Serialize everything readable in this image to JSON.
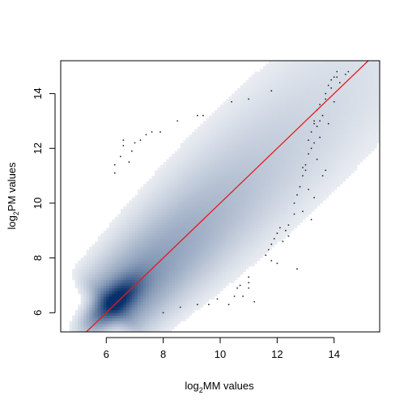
{
  "chart_data": {
    "type": "scatter",
    "title": "",
    "xlabel": {
      "prefix": "log",
      "sub": "2",
      "suffix": "MM values"
    },
    "ylabel": {
      "prefix": "log",
      "sub": "2",
      "suffix": "PM values"
    },
    "xlim": [
      4.4,
      15.6
    ],
    "ylim": [
      5.3,
      15.2
    ],
    "x_ticks": [
      6,
      8,
      10,
      12,
      14
    ],
    "y_ticks": [
      6,
      8,
      10,
      12,
      14
    ],
    "grid": false,
    "legend": "none",
    "density": {
      "description_colors": [
        "#ffffff",
        "#08306b"
      ],
      "color_low": "#ffffff",
      "color_high": "#08306b"
    },
    "reference_line": {
      "intercept": 0,
      "slope": 1,
      "color": "#e41a1c"
    },
    "outlier_points": [
      [
        6.3,
        11.1
      ],
      [
        6.3,
        11.4
      ],
      [
        6.5,
        11.7
      ],
      [
        6.6,
        12.1
      ],
      [
        6.6,
        12.3
      ],
      [
        6.8,
        11.5
      ],
      [
        6.9,
        11.9
      ],
      [
        7.0,
        12.2
      ],
      [
        7.2,
        12.3
      ],
      [
        7.4,
        12.5
      ],
      [
        7.6,
        12.6
      ],
      [
        7.9,
        12.6
      ],
      [
        8.5,
        13.0
      ],
      [
        9.2,
        13.2
      ],
      [
        9.4,
        13.2
      ],
      [
        10.4,
        13.7
      ],
      [
        11.0,
        13.8
      ],
      [
        11.8,
        14.1
      ],
      [
        8.0,
        6.0
      ],
      [
        8.6,
        6.2
      ],
      [
        9.2,
        6.3
      ],
      [
        9.6,
        6.3
      ],
      [
        9.9,
        6.5
      ],
      [
        10.3,
        6.3
      ],
      [
        10.5,
        6.6
      ],
      [
        10.6,
        6.9
      ],
      [
        10.7,
        7.0
      ],
      [
        10.8,
        6.6
      ],
      [
        11.0,
        6.9
      ],
      [
        11.0,
        7.1
      ],
      [
        11.0,
        7.3
      ],
      [
        11.2,
        6.4
      ],
      [
        11.6,
        8.1
      ],
      [
        11.7,
        8.3
      ],
      [
        11.8,
        7.9
      ],
      [
        11.8,
        8.5
      ],
      [
        11.9,
        8.7
      ],
      [
        12.0,
        7.8
      ],
      [
        12.0,
        8.9
      ],
      [
        12.1,
        9.1
      ],
      [
        12.2,
        8.6
      ],
      [
        12.3,
        9.0
      ],
      [
        12.4,
        9.2
      ],
      [
        12.4,
        8.8
      ],
      [
        12.6,
        9.6
      ],
      [
        12.6,
        10.0
      ],
      [
        12.7,
        10.3
      ],
      [
        12.7,
        7.6
      ],
      [
        12.8,
        10.6
      ],
      [
        12.9,
        9.7
      ],
      [
        12.9,
        11.0
      ],
      [
        13.0,
        11.2
      ],
      [
        13.0,
        11.4
      ],
      [
        13.1,
        10.5
      ],
      [
        13.1,
        11.8
      ],
      [
        13.2,
        12.0
      ],
      [
        13.2,
        12.6
      ],
      [
        13.2,
        9.4
      ],
      [
        13.3,
        10.2
      ],
      [
        13.3,
        12.2
      ],
      [
        13.3,
        13.0
      ],
      [
        13.4,
        11.6
      ],
      [
        13.4,
        12.8
      ],
      [
        13.4,
        13.4
      ],
      [
        13.5,
        13.6
      ],
      [
        13.5,
        12.4
      ],
      [
        13.6,
        11.0
      ],
      [
        13.6,
        13.2
      ],
      [
        13.7,
        13.8
      ],
      [
        13.7,
        11.2
      ],
      [
        13.7,
        14.0
      ],
      [
        13.8,
        12.9
      ],
      [
        13.8,
        14.3
      ],
      [
        13.9,
        14.2
      ],
      [
        14.0,
        14.6
      ],
      [
        14.0,
        13.7
      ],
      [
        14.1,
        14.8
      ],
      [
        14.2,
        14.4
      ],
      [
        14.4,
        14.7
      ],
      [
        14.5,
        14.8
      ],
      [
        14.1,
        14.6
      ],
      [
        13.9,
        14.5
      ],
      [
        13.5,
        13.0
      ],
      [
        13.3,
        12.9
      ],
      [
        12.9,
        11.3
      ],
      [
        13.1,
        12.3
      ]
    ]
  }
}
